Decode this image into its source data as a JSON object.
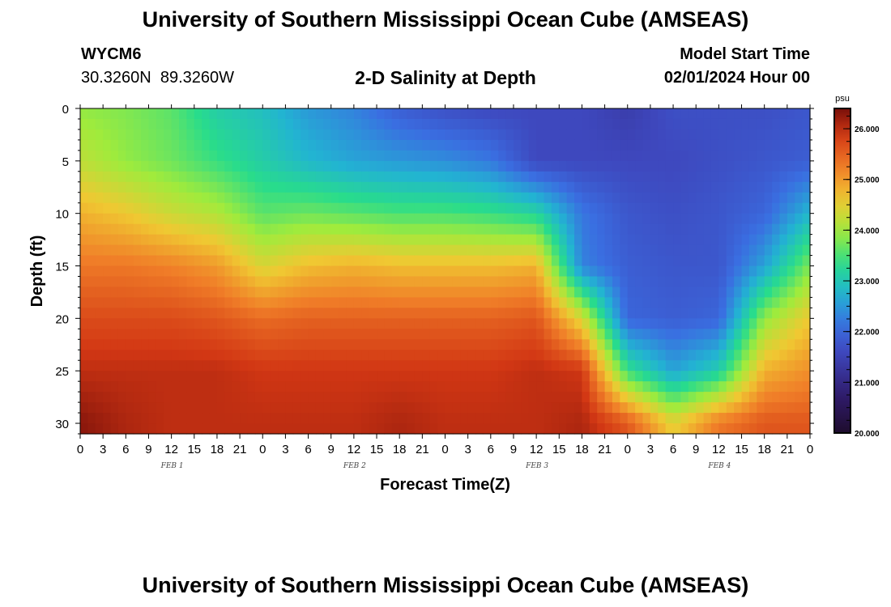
{
  "header": {
    "title": "University of Southern Mississippi Ocean Cube (AMSEAS)",
    "station_id": "WYCM6",
    "station_coords": "30.3260N  89.3260W",
    "plot_title": "2-D Salinity at Depth",
    "model_start_label": "Model Start Time",
    "model_start_value": "02/01/2024 Hour 00"
  },
  "footer": {
    "title": "University of Southern Mississippi Ocean Cube (AMSEAS)"
  },
  "chart_data": {
    "type": "heatmap",
    "title": "2-D Salinity at Depth",
    "xlabel": "Forecast Time(Z)",
    "ylabel": "Depth (ft)",
    "x_range_hours": [
      0,
      96
    ],
    "y_range_ft": [
      0,
      31
    ],
    "x_tick_labels": [
      "0",
      "3",
      "6",
      "9",
      "12",
      "15",
      "18",
      "21",
      "0",
      "3",
      "6",
      "9",
      "12",
      "15",
      "18",
      "21",
      "0",
      "3",
      "6",
      "9",
      "12",
      "15",
      "18",
      "21",
      "0",
      "3",
      "6",
      "9",
      "12",
      "15",
      "18",
      "21",
      "0"
    ],
    "day_labels": [
      "FEB 1",
      "FEB 2",
      "FEB 3",
      "FEB 4"
    ],
    "y_ticks": [
      0,
      5,
      10,
      15,
      20,
      25,
      30
    ],
    "colorbar": {
      "unit": "psu",
      "min": 20.0,
      "max": 26.4,
      "tick_values": [
        20.0,
        21.0,
        22.0,
        23.0,
        24.0,
        25.0,
        26.0
      ],
      "tick_labels": [
        "20.000",
        "21.000",
        "22.000",
        "23.000",
        "24.000",
        "25.000",
        "26.000"
      ]
    },
    "grid": false,
    "depth_levels_ft": [
      0,
      5,
      10,
      15,
      20,
      25,
      30
    ],
    "salinity_profiles": {
      "hours": [
        0,
        6,
        12,
        18,
        24,
        30,
        36,
        42,
        48,
        54,
        60,
        66,
        72,
        78,
        84,
        90,
        96
      ],
      "values": [
        [
          23.9,
          24.2,
          24.8,
          25.3,
          25.7,
          26.0,
          26.3
        ],
        [
          23.8,
          23.9,
          24.6,
          25.3,
          25.7,
          26.0,
          26.1
        ],
        [
          23.6,
          23.7,
          24.3,
          25.2,
          25.7,
          26.0,
          26.0
        ],
        [
          23.1,
          23.4,
          24.1,
          25.0,
          25.6,
          26.0,
          26.0
        ],
        [
          22.9,
          23.1,
          23.6,
          24.4,
          25.4,
          25.9,
          26.0
        ],
        [
          22.5,
          22.8,
          23.7,
          24.7,
          25.5,
          25.9,
          26.0
        ],
        [
          22.3,
          22.6,
          23.6,
          24.8,
          25.5,
          25.9,
          26.0
        ],
        [
          21.9,
          22.5,
          23.5,
          24.7,
          25.5,
          25.9,
          26.1
        ],
        [
          21.7,
          22.4,
          23.5,
          24.7,
          25.5,
          25.9,
          26.0
        ],
        [
          21.6,
          22.2,
          23.4,
          24.7,
          25.5,
          25.9,
          26.0
        ],
        [
          21.6,
          21.6,
          23.2,
          24.8,
          25.6,
          26.0,
          26.0
        ],
        [
          21.6,
          21.6,
          22.2,
          22.3,
          24.4,
          25.9,
          26.1
        ],
        [
          21.4,
          21.6,
          21.8,
          21.9,
          22.0,
          23.4,
          25.6
        ],
        [
          21.7,
          21.6,
          21.7,
          21.8,
          21.9,
          22.6,
          24.5
        ],
        [
          21.7,
          21.7,
          21.8,
          21.8,
          22.0,
          23.1,
          25.3
        ],
        [
          21.7,
          21.8,
          22.0,
          22.6,
          23.9,
          24.8,
          25.6
        ],
        [
          21.8,
          21.9,
          22.8,
          23.8,
          24.6,
          25.1,
          25.6
        ]
      ]
    }
  }
}
